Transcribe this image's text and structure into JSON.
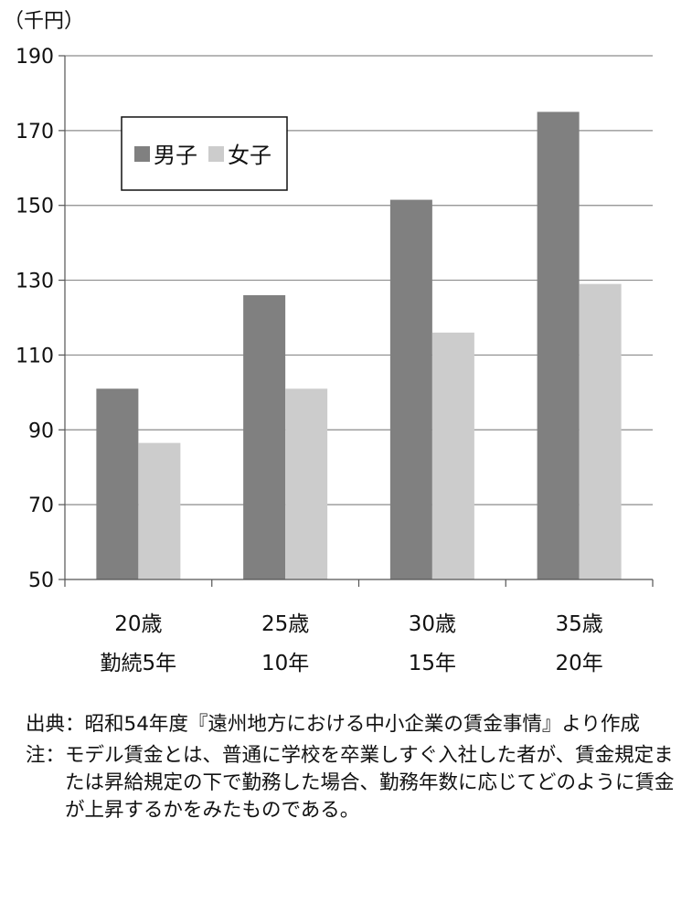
{
  "chart_data": {
    "type": "bar",
    "unit_label": "（千円）",
    "categories": [
      {
        "age": "20歳",
        "tenure": "勤続5年"
      },
      {
        "age": "25歳",
        "tenure": "10年"
      },
      {
        "age": "30歳",
        "tenure": "15年"
      },
      {
        "age": "35歳",
        "tenure": "20年"
      }
    ],
    "series": [
      {
        "name": "男子",
        "color": "#808080",
        "values": [
          101,
          126,
          151.5,
          175
        ]
      },
      {
        "name": "女子",
        "color": "#cccccc",
        "values": [
          86.5,
          101,
          116,
          129
        ]
      }
    ],
    "ylim": [
      50,
      190
    ],
    "yticks": [
      50,
      70,
      90,
      110,
      130,
      150,
      170,
      190
    ],
    "grid": true,
    "legend": "top-left"
  },
  "notes": {
    "source_label": "出典：",
    "source_text": "昭和54年度『遠州地方における中小企業の賃金事情』より作成",
    "note_label": "注：",
    "note_text": "モデル賃金とは、普通に学校を卒業しすぐ入社した者が、賃金規定または昇給規定の下で勤務した場合、勤務年数に応じてどのように賃金が上昇するかをみたものである。"
  }
}
